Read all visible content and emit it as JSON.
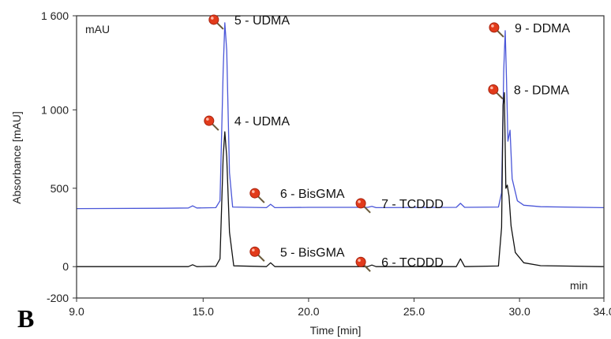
{
  "panel_letter": "B",
  "chart_data": {
    "type": "line",
    "xlabel": "Time [min]",
    "ylabel": "Absorbance [mAU]",
    "y_unit_label": "mAU",
    "x_unit_label": "min",
    "xlim": [
      9.0,
      34.0
    ],
    "ylim": [
      -200,
      1600
    ],
    "xticks": [
      {
        "value": 9.0,
        "label": "9.0"
      },
      {
        "value": 15.0,
        "label": "15.0"
      },
      {
        "value": 20.0,
        "label": "20.0"
      },
      {
        "value": 25.0,
        "label": "25.0"
      },
      {
        "value": 30.0,
        "label": "30.0"
      },
      {
        "value": 34.0,
        "label": "34.0"
      }
    ],
    "yticks": [
      {
        "value": 1600,
        "label": "1 600"
      },
      {
        "value": 1000,
        "label": "1 000"
      },
      {
        "value": 500,
        "label": "500"
      },
      {
        "value": 0,
        "label": "0"
      },
      {
        "value": -200,
        "label": "-200"
      }
    ],
    "colors": {
      "upper": "#4a56d8",
      "lower": "#111111",
      "marker": "#e23b1b"
    },
    "series": [
      {
        "key": "upper",
        "color": "#4a56d8",
        "points": [
          [
            9.0,
            370
          ],
          [
            13.0,
            372
          ],
          [
            14.3,
            374
          ],
          [
            14.5,
            388
          ],
          [
            14.7,
            374
          ],
          [
            15.6,
            376
          ],
          [
            15.8,
            420
          ],
          [
            15.95,
            1250
          ],
          [
            16.03,
            1555
          ],
          [
            16.12,
            1380
          ],
          [
            16.25,
            600
          ],
          [
            16.4,
            380
          ],
          [
            18.0,
            376
          ],
          [
            18.2,
            398
          ],
          [
            18.4,
            376
          ],
          [
            20.0,
            378
          ],
          [
            22.8,
            378
          ],
          [
            23.0,
            384
          ],
          [
            23.2,
            376
          ],
          [
            27.0,
            378
          ],
          [
            27.2,
            404
          ],
          [
            27.4,
            378
          ],
          [
            29.0,
            380
          ],
          [
            29.15,
            470
          ],
          [
            29.25,
            1250
          ],
          [
            29.32,
            1505
          ],
          [
            29.38,
            1200
          ],
          [
            29.45,
            800
          ],
          [
            29.55,
            870
          ],
          [
            29.65,
            560
          ],
          [
            29.9,
            420
          ],
          [
            30.2,
            392
          ],
          [
            31.0,
            382
          ],
          [
            34.0,
            376
          ]
        ]
      },
      {
        "key": "lower",
        "color": "#111111",
        "points": [
          [
            9.0,
            0
          ],
          [
            13.0,
            0
          ],
          [
            14.3,
            0
          ],
          [
            14.5,
            12
          ],
          [
            14.7,
            0
          ],
          [
            15.6,
            2
          ],
          [
            15.8,
            50
          ],
          [
            15.95,
            700
          ],
          [
            16.03,
            860
          ],
          [
            16.12,
            700
          ],
          [
            16.25,
            220
          ],
          [
            16.45,
            5
          ],
          [
            18.0,
            0
          ],
          [
            18.2,
            25
          ],
          [
            18.4,
            0
          ],
          [
            22.8,
            0
          ],
          [
            23.0,
            10
          ],
          [
            23.2,
            0
          ],
          [
            27.0,
            0
          ],
          [
            27.2,
            50
          ],
          [
            27.4,
            0
          ],
          [
            29.0,
            4
          ],
          [
            29.15,
            250
          ],
          [
            29.22,
            1030
          ],
          [
            29.28,
            1110
          ],
          [
            29.35,
            500
          ],
          [
            29.42,
            520
          ],
          [
            29.5,
            450
          ],
          [
            29.6,
            260
          ],
          [
            29.8,
            90
          ],
          [
            30.2,
            25
          ],
          [
            31.0,
            6
          ],
          [
            34.0,
            0
          ]
        ]
      }
    ],
    "annotations": [
      {
        "text": "5 - UDMA",
        "x": 16.03,
        "y": 1555,
        "anchor": "right"
      },
      {
        "text": "4 - UDMA",
        "x": 16.03,
        "y": 860,
        "anchor": "left"
      },
      {
        "text": "6 - BisGMA",
        "x": 18.2,
        "y": 398,
        "anchor": "left"
      },
      {
        "text": "7 - TCDDD",
        "x": 23.0,
        "y": 384,
        "anchor": "right"
      },
      {
        "text": "9 - DDMA",
        "x": 29.32,
        "y": 1505,
        "anchor": "right"
      },
      {
        "text": "8 - DDMA",
        "x": 29.28,
        "y": 1110,
        "anchor": "right"
      },
      {
        "text": "5 - BisGMA",
        "x": 18.2,
        "y": 25,
        "anchor": "left"
      },
      {
        "text": "6 - TCDDD",
        "x": 23.0,
        "y": 10,
        "anchor": "right"
      }
    ]
  }
}
